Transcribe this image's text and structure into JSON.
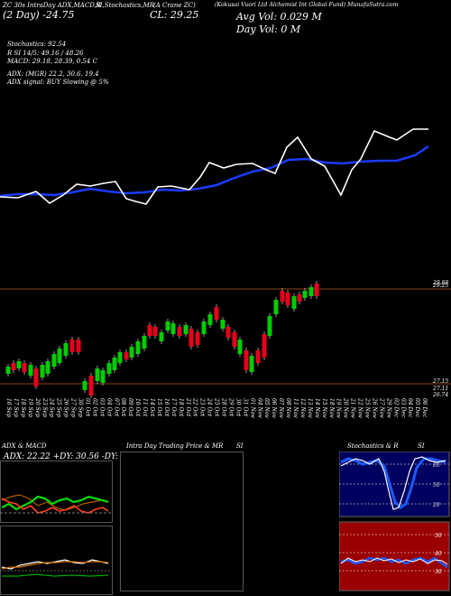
{
  "header": {
    "left": "ZC 30s IntraDay ADX,MACD,B",
    "left2": "(2 Day) -24.75",
    "stoch_label": "SI,Stochastics,MR",
    "ticker": "(A Crane ZC)",
    "close": "CL: 29.25",
    "company": "(Kokusai Vuori Ltd Alchemist Int Global Fund) MunafaSutra.com",
    "avg_vol": "Avg Vol: 0.029 M",
    "day_vol": "Day Vol: 0   M"
  },
  "info_lines": [
    "Stochastics: 92.54",
    "R            SI 14/5: 49.16 / 48.26",
    "MACD: 29.18, 28.39, 0.54   C",
    "ADX:                       (MGR) 22.2,  30.6,  19.4",
    "ADX  signal:              BUY Slowing @ 5%"
  ],
  "price_labels": {
    "top_a": "29.88",
    "top_b": "29.25",
    "bottom_a": "27.15",
    "bottom_b": "27.11",
    "bottom_c": "26.74"
  },
  "dates": [
    "16 Sep",
    "17 Sep",
    "18 Sep",
    "19 Sep",
    "20 Sep",
    "23 Sep",
    "24 Sep",
    "25 Sep",
    "26 Sep",
    "27 Sep",
    "30 Sep",
    "01 Oct",
    "02 Oct",
    "03 Oct",
    "04 Oct",
    "07 Oct",
    "08 Oct",
    "09 Oct",
    "10 Oct",
    "11 Oct",
    "14 Oct",
    "15 Oct",
    "16 Oct",
    "17 Oct",
    "18 Oct",
    "21 Oct",
    "22 Oct",
    "23 Oct",
    "24 Oct",
    "25 Oct",
    "28 Oct",
    "29 Oct",
    "30 Oct",
    "31 Oct",
    "01 Nov",
    "04 Nov",
    "05 Nov",
    "06 Nov",
    "07 Nov",
    "08 Nov",
    "11 Nov",
    "12 Nov",
    "13 Nov",
    "14 Nov",
    "15 Nov",
    "18 Nov",
    "19 Nov",
    "20 Nov",
    "21 Nov",
    "22 Nov",
    "25 Nov",
    "26 Nov",
    "27 Nov",
    "29 Nov",
    "02 Dec",
    "03 Dec",
    "04 Dec",
    "05 Dec",
    "06 Dec"
  ],
  "panels": {
    "adx_title": "ADX  & MACD",
    "adx_values": "ADX: 22.22  +DY: 30.56  -DY: 19.44",
    "intra_title": "Intra  Day Trading Price  & MR",
    "intra_si": "SI",
    "stoch_title": "Stochastics & R",
    "stoch_si": "SI",
    "stoch_levels": [
      "80",
      "50",
      "20"
    ],
    "rsi_levels": [
      "50",
      "40",
      "30"
    ]
  },
  "colors": {
    "up": "#00cc00",
    "down": "#e8001c",
    "ema": "#1a3cff",
    "price_line": "#ffffff",
    "stoch_bg": "#000060",
    "rsi_bg": "#9a0000"
  }
}
